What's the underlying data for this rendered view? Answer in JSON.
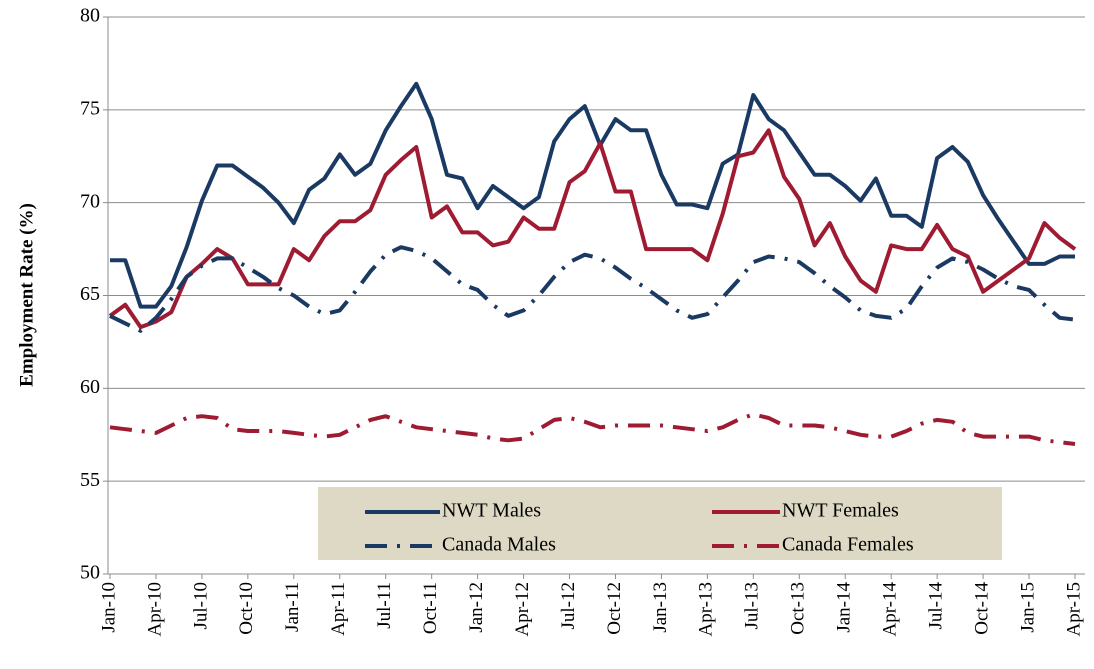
{
  "chart_data": {
    "type": "line",
    "y_label": "Employment Rate (%)",
    "categories": [
      "Jan-10",
      null,
      null,
      "Apr-10",
      null,
      null,
      "Jul-10",
      null,
      null,
      "Oct-10",
      null,
      null,
      "Jan-11",
      null,
      null,
      "Apr-11",
      null,
      null,
      "Jul-11",
      null,
      null,
      "Oct-11",
      null,
      null,
      "Jan-12",
      null,
      null,
      "Apr-12",
      null,
      null,
      "Jul-12",
      null,
      null,
      "Oct-12",
      null,
      null,
      "Jan-13",
      null,
      null,
      "Apr-13",
      null,
      null,
      "Jul-13",
      null,
      null,
      "Oct-13",
      null,
      null,
      "Jan-14",
      null,
      null,
      "Apr-14",
      null,
      null,
      "Jul-14",
      null,
      null,
      "Oct-14",
      null,
      null,
      "Jan-15",
      null,
      null,
      "Apr-15"
    ],
    "series": [
      {
        "name": "NWT Males",
        "color": "#1b3a63",
        "style": "solid",
        "values": [
          66.9,
          66.9,
          64.4,
          64.4,
          65.5,
          67.6,
          70.1,
          72.0,
          72.0,
          71.4,
          70.8,
          70.0,
          68.9,
          70.7,
          71.3,
          72.6,
          71.5,
          72.1,
          73.9,
          75.2,
          76.4,
          74.5,
          71.5,
          71.3,
          69.7,
          70.9,
          70.3,
          69.7,
          70.3,
          73.3,
          74.5,
          75.2,
          73.1,
          74.5,
          73.9,
          73.9,
          71.5,
          69.9,
          69.9,
          69.7,
          72.1,
          72.6,
          75.8,
          74.5,
          73.9,
          72.7,
          71.5,
          71.5,
          70.9,
          70.1,
          71.3,
          69.3,
          69.3,
          68.7,
          72.4,
          73.0,
          72.2,
          70.4,
          69.1,
          67.9,
          66.7,
          66.7,
          67.1,
          67.1
        ]
      },
      {
        "name": "NWT Females",
        "color": "#9e1b32",
        "style": "solid",
        "values": [
          63.9,
          64.5,
          63.3,
          63.6,
          64.1,
          66.0,
          66.7,
          67.5,
          67.0,
          65.6,
          65.6,
          65.6,
          67.5,
          66.9,
          68.2,
          69.0,
          69.0,
          69.6,
          71.5,
          72.3,
          73.0,
          69.2,
          69.8,
          68.4,
          68.4,
          67.7,
          67.9,
          69.2,
          68.6,
          68.6,
          71.1,
          71.7,
          73.2,
          70.6,
          70.6,
          67.5,
          67.5,
          67.5,
          67.5,
          66.9,
          69.4,
          72.5,
          72.7,
          73.9,
          71.4,
          70.2,
          67.7,
          68.9,
          67.1,
          65.8,
          65.2,
          67.7,
          67.5,
          67.5,
          68.8,
          67.5,
          67.1,
          65.2,
          65.8,
          66.4,
          67.0,
          68.9,
          68.1,
          67.5
        ]
      },
      {
        "name": "Canada Males",
        "color": "#1b3a63",
        "style": "dash-dot",
        "values": [
          63.9,
          63.5,
          63.1,
          63.8,
          64.8,
          66.0,
          66.6,
          67.0,
          67.0,
          66.5,
          66.0,
          65.4,
          65.0,
          64.4,
          64.0,
          64.2,
          65.2,
          66.3,
          67.2,
          67.6,
          67.4,
          67.0,
          66.3,
          65.6,
          65.3,
          64.5,
          63.9,
          64.2,
          65.0,
          66.0,
          66.8,
          67.2,
          67.0,
          66.5,
          65.9,
          65.4,
          64.8,
          64.2,
          63.8,
          64.0,
          64.9,
          65.8,
          66.8,
          67.1,
          67.0,
          66.8,
          66.2,
          65.5,
          64.9,
          64.2,
          63.9,
          63.8,
          64.3,
          65.5,
          66.5,
          67.0,
          66.8,
          66.4,
          65.9,
          65.5,
          65.3,
          64.5,
          63.8,
          63.7
        ]
      },
      {
        "name": "Canada Females",
        "color": "#9e1b32",
        "style": "dash-dot",
        "values": [
          57.9,
          57.8,
          57.7,
          57.6,
          58.0,
          58.4,
          58.5,
          58.4,
          57.8,
          57.7,
          57.7,
          57.7,
          57.6,
          57.5,
          57.4,
          57.5,
          57.9,
          58.3,
          58.5,
          58.2,
          57.9,
          57.8,
          57.7,
          57.6,
          57.5,
          57.3,
          57.2,
          57.3,
          57.8,
          58.3,
          58.4,
          58.2,
          57.9,
          58.0,
          58.0,
          58.0,
          58.0,
          57.9,
          57.8,
          57.7,
          57.9,
          58.3,
          58.6,
          58.4,
          58.0,
          58.0,
          58.0,
          57.9,
          57.7,
          57.5,
          57.4,
          57.4,
          57.7,
          58.1,
          58.3,
          58.2,
          57.6,
          57.4,
          57.4,
          57.4,
          57.4,
          57.2,
          57.1,
          57.0
        ]
      }
    ],
    "ylim": [
      50,
      80
    ],
    "yticks": [
      50,
      55,
      60,
      65,
      70,
      75,
      80
    ],
    "grid": true,
    "legend": "bottom"
  }
}
